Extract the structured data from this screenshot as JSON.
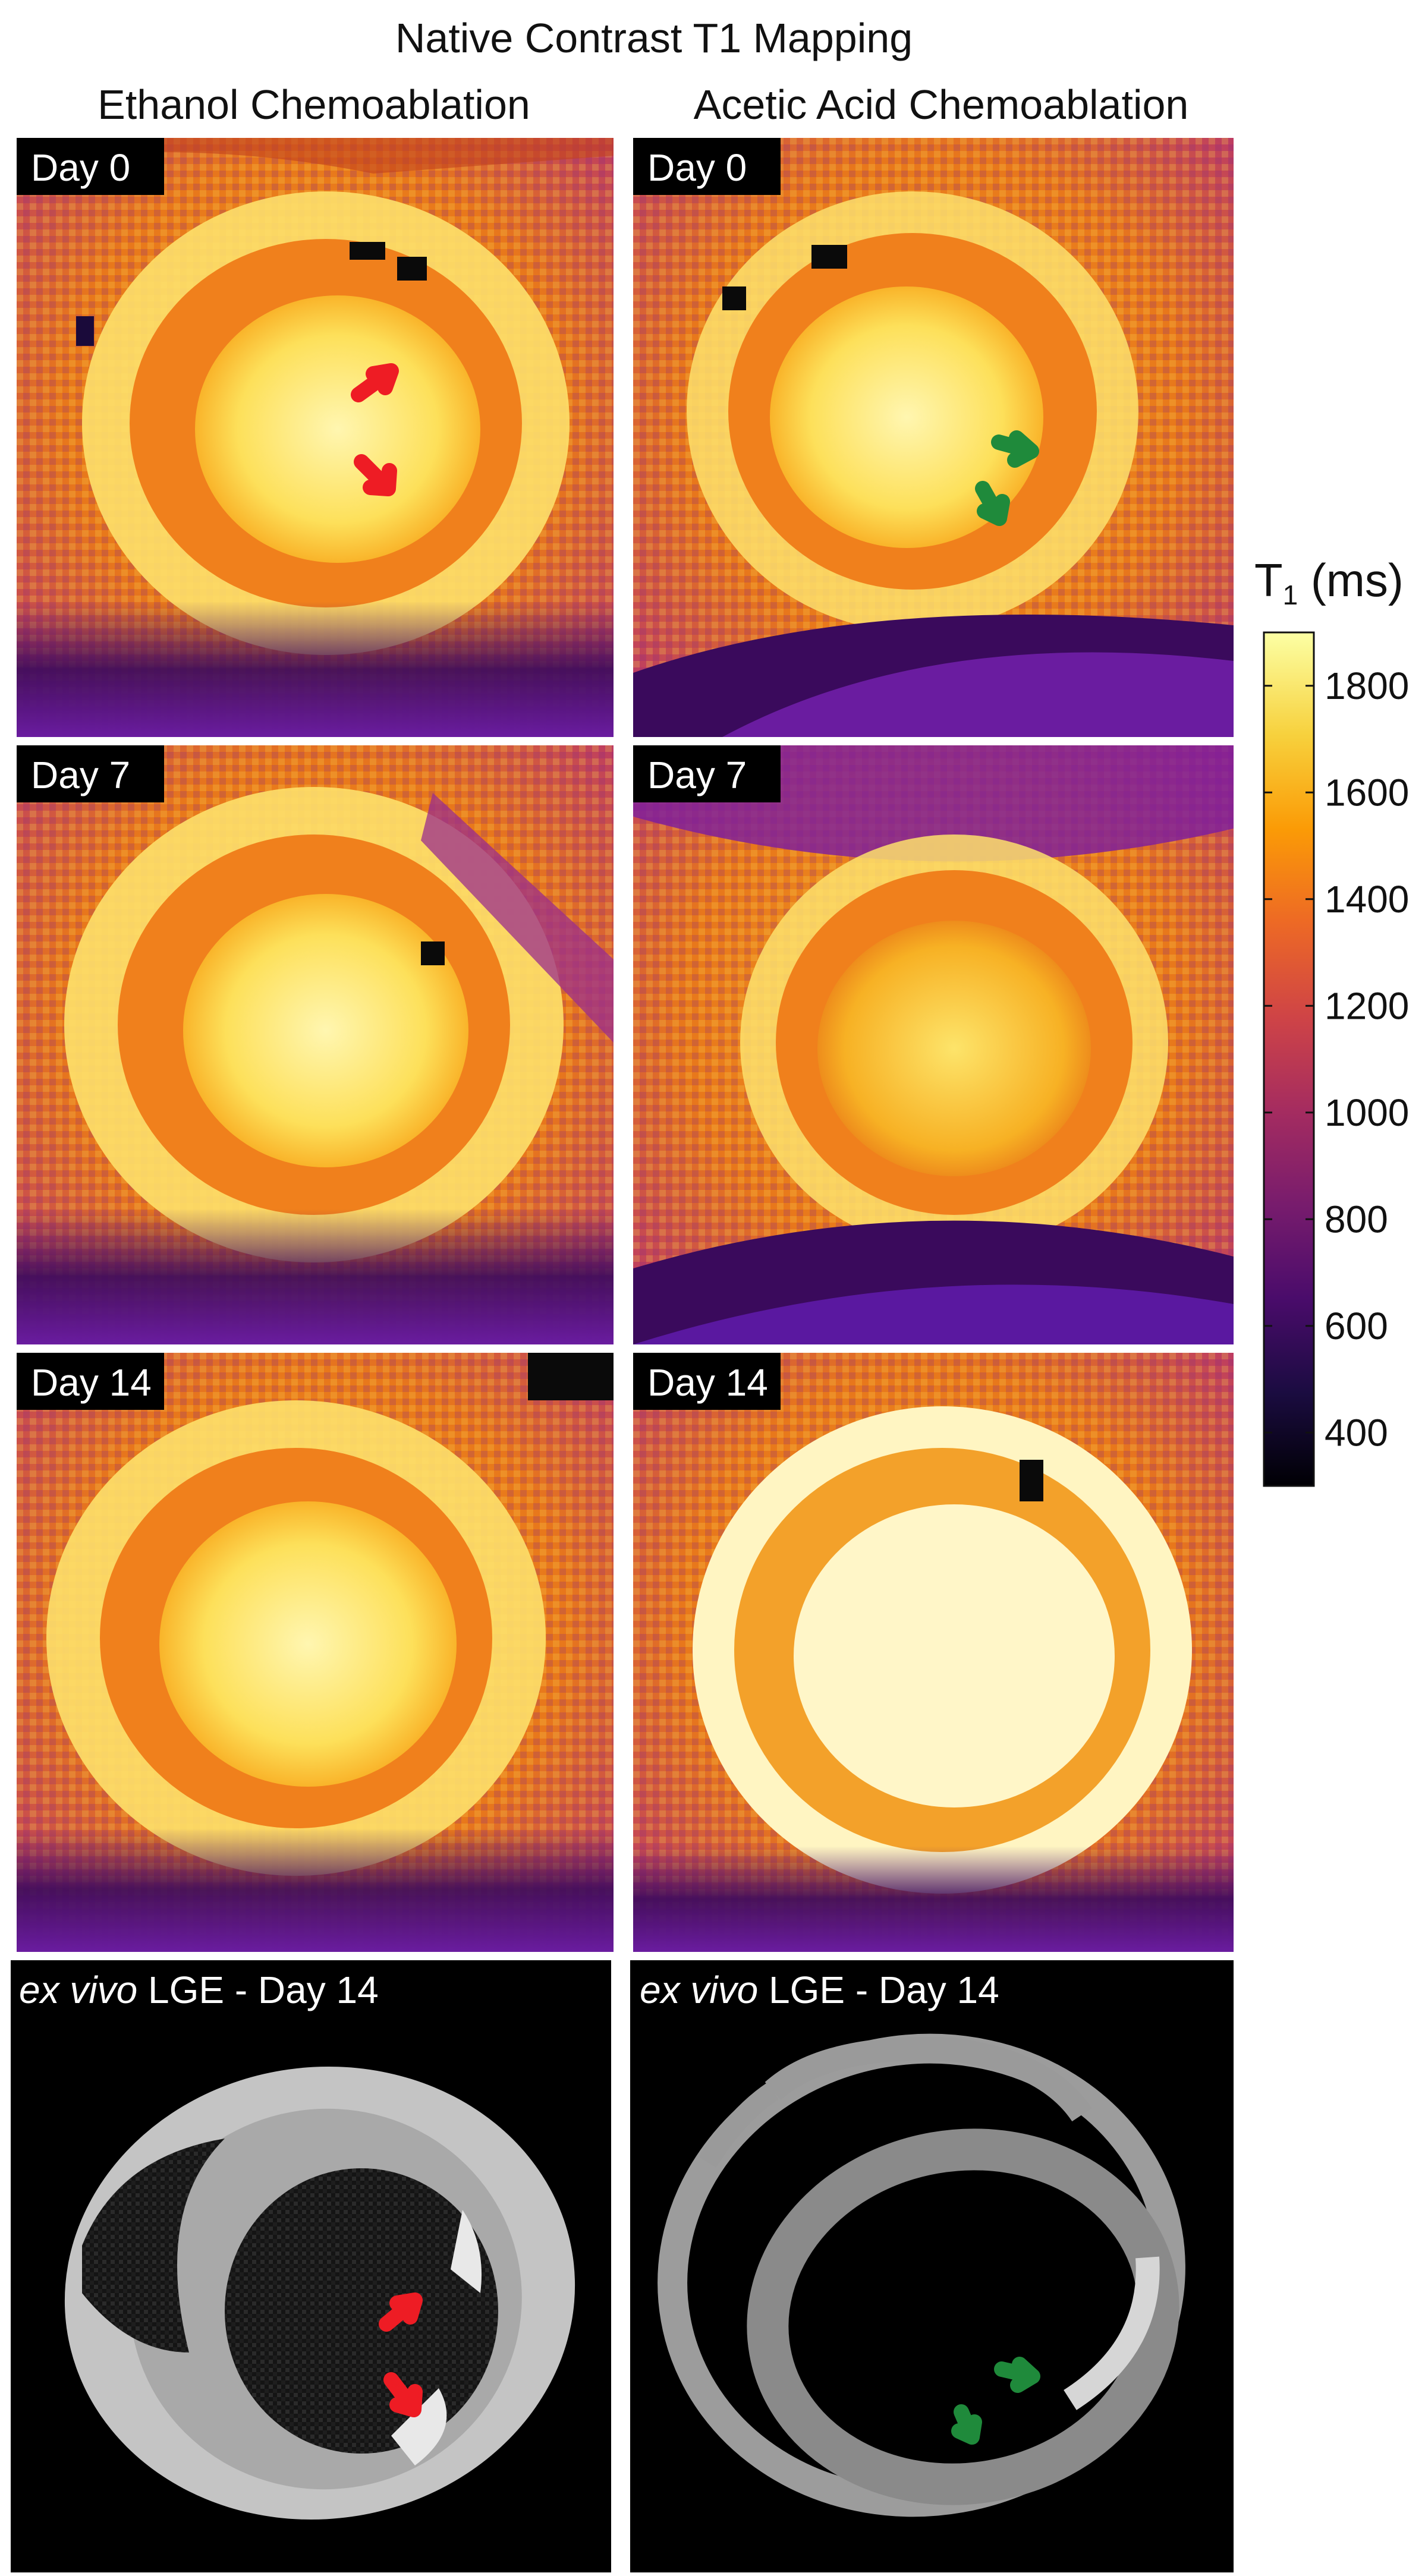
{
  "figure": {
    "title": "Native Contrast T1 Mapping",
    "columns": [
      "Ethanol Chemoablation",
      "Acetic Acid Chemoablation"
    ],
    "rows": [
      {
        "label": "Day 0"
      },
      {
        "label": "Day 7"
      },
      {
        "label": "Day 14"
      }
    ],
    "lge": {
      "prefix": "ex vivo",
      "suffix": " LGE - Day 14"
    },
    "colorbar": {
      "title": "T",
      "title_sub": "1",
      "title_unit": " (ms)",
      "ticks": [
        "1800",
        "1600",
        "1400",
        "1200",
        "1000",
        "800",
        "600",
        "400"
      ],
      "tick_values": [
        1800,
        1600,
        1400,
        1200,
        1000,
        800,
        600,
        400
      ],
      "range": [
        300,
        1900
      ],
      "colormap": [
        "#000004",
        "#1b0c41",
        "#4a0c6b",
        "#781c6d",
        "#a52c60",
        "#cf4446",
        "#ed6925",
        "#fb9b06",
        "#f7d13d",
        "#fcffa4"
      ]
    },
    "arrow_colors": {
      "ethanol": "#ee1c24",
      "acetic": "#1f8a3b"
    }
  }
}
